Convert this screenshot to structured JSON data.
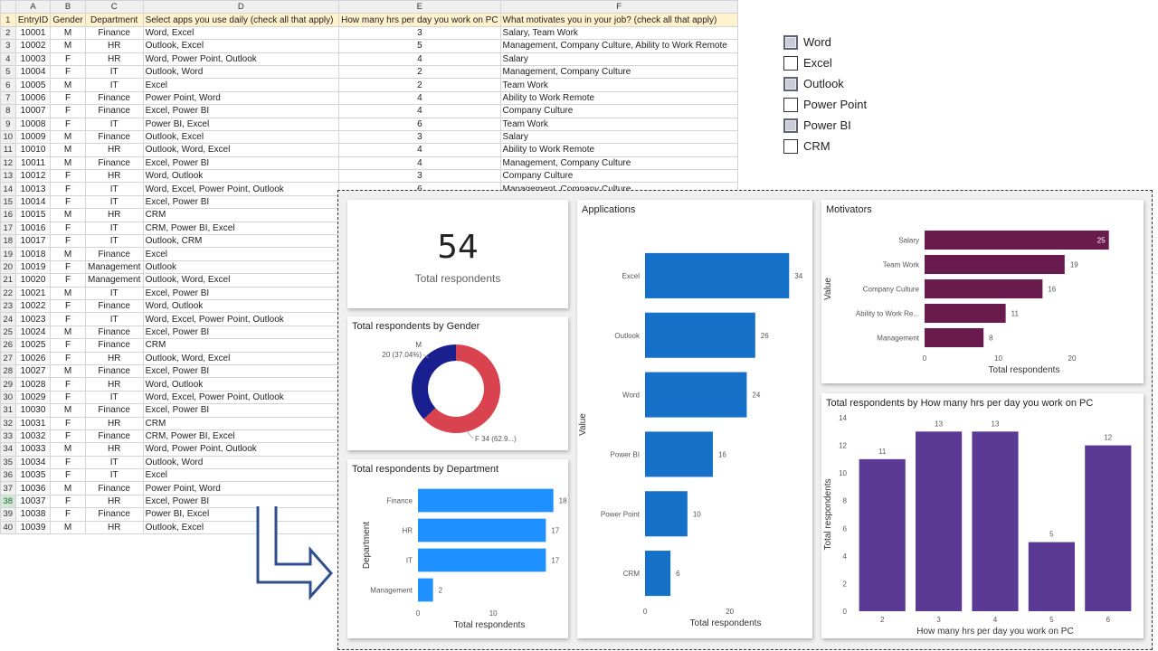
{
  "sheet": {
    "col_letters": [
      "A",
      "B",
      "C",
      "D",
      "E",
      "F"
    ],
    "headers": [
      "EntryID",
      "Gender",
      "Department",
      "Select apps you use daily (check all that apply)",
      "How many hrs per day you work on PC",
      "What motivates you in your job? (check all that apply)"
    ],
    "rows": [
      [
        "10001",
        "M",
        "Finance",
        "Word, Excel",
        "3",
        "Salary, Team Work"
      ],
      [
        "10002",
        "M",
        "HR",
        "Outlook, Excel",
        "5",
        "Management, Company Culture, Ability to Work Remote"
      ],
      [
        "10003",
        "F",
        "HR",
        "Word, Power Point, Outlook",
        "4",
        "Salary"
      ],
      [
        "10004",
        "F",
        "IT",
        "Outlook, Word",
        "2",
        "Management, Company Culture"
      ],
      [
        "10005",
        "M",
        "IT",
        "Excel",
        "2",
        "Team Work"
      ],
      [
        "10006",
        "F",
        "Finance",
        "Power Point, Word",
        "4",
        "Ability to Work Remote"
      ],
      [
        "10007",
        "F",
        "Finance",
        "Excel, Power BI",
        "4",
        "Company Culture"
      ],
      [
        "10008",
        "F",
        "IT",
        "Power BI, Excel",
        "6",
        "Team Work"
      ],
      [
        "10009",
        "M",
        "Finance",
        "Outlook, Excel",
        "3",
        "Salary"
      ],
      [
        "10010",
        "M",
        "HR",
        "Outlook, Word, Excel",
        "4",
        "Ability to Work Remote"
      ],
      [
        "10011",
        "M",
        "Finance",
        "Excel, Power BI",
        "4",
        "Management, Company Culture"
      ],
      [
        "10012",
        "F",
        "HR",
        "Word, Outlook",
        "3",
        "Company Culture"
      ],
      [
        "10013",
        "F",
        "IT",
        "Word, Excel, Power Point, Outlook",
        "6",
        "Management, Company Culture"
      ],
      [
        "10014",
        "F",
        "IT",
        "Excel, Power BI",
        "",
        ""
      ],
      [
        "10015",
        "M",
        "HR",
        "CRM",
        "",
        ""
      ],
      [
        "10016",
        "F",
        "IT",
        "CRM, Power BI, Excel",
        "",
        ""
      ],
      [
        "10017",
        "F",
        "IT",
        "Outlook, CRM",
        "",
        ""
      ],
      [
        "10018",
        "M",
        "Finance",
        "Excel",
        "",
        ""
      ],
      [
        "10019",
        "F",
        "Management",
        "Outlook",
        "",
        ""
      ],
      [
        "10020",
        "F",
        "Management",
        "Outlook, Word, Excel",
        "",
        ""
      ],
      [
        "10021",
        "M",
        "IT",
        "Excel, Power BI",
        "",
        ""
      ],
      [
        "10022",
        "F",
        "Finance",
        "Word, Outlook",
        "",
        ""
      ],
      [
        "10023",
        "F",
        "IT",
        "Word, Excel, Power Point, Outlook",
        "",
        ""
      ],
      [
        "10024",
        "M",
        "Finance",
        "Excel, Power BI",
        "",
        ""
      ],
      [
        "10025",
        "F",
        "Finance",
        "CRM",
        "",
        ""
      ],
      [
        "10026",
        "F",
        "HR",
        "Outlook, Word, Excel",
        "",
        ""
      ],
      [
        "10027",
        "M",
        "Finance",
        "Excel, Power BI",
        "",
        ""
      ],
      [
        "10028",
        "F",
        "HR",
        "Word, Outlook",
        "",
        ""
      ],
      [
        "10029",
        "F",
        "IT",
        "Word, Excel, Power Point, Outlook",
        "",
        ""
      ],
      [
        "10030",
        "M",
        "Finance",
        "Excel, Power BI",
        "",
        ""
      ],
      [
        "10031",
        "F",
        "HR",
        "CRM",
        "",
        ""
      ],
      [
        "10032",
        "F",
        "Finance",
        "CRM, Power BI, Excel",
        "",
        ""
      ],
      [
        "10033",
        "M",
        "HR",
        "Word, Power Point, Outlook",
        "",
        ""
      ],
      [
        "10034",
        "F",
        "IT",
        "Outlook, Word",
        "",
        ""
      ],
      [
        "10035",
        "F",
        "IT",
        "Excel",
        "",
        ""
      ],
      [
        "10036",
        "M",
        "Finance",
        "Power Point, Word",
        "",
        ""
      ],
      [
        "10037",
        "F",
        "HR",
        "Excel, Power BI",
        "",
        ""
      ],
      [
        "10038",
        "F",
        "Finance",
        "Power BI, Excel",
        "",
        ""
      ],
      [
        "10039",
        "M",
        "HR",
        "Outlook, Excel",
        "",
        ""
      ]
    ]
  },
  "checklist": [
    {
      "label": "Word",
      "checked": true
    },
    {
      "label": "Excel",
      "checked": false
    },
    {
      "label": "Outlook",
      "checked": true
    },
    {
      "label": "Power Point",
      "checked": false
    },
    {
      "label": "Power BI",
      "checked": true
    },
    {
      "label": "CRM",
      "checked": false
    }
  ],
  "kpi": {
    "value": "54",
    "label": "Total respondents"
  },
  "colors": {
    "blue": "#1570c8",
    "dept": "#1e90ff",
    "purple": "#6a1b4d",
    "violet": "#5b3a96",
    "donut_m": "#1a1f8f",
    "donut_f": "#d9434f"
  },
  "chart_data": [
    {
      "type": "pie",
      "title": "Total respondents by Gender",
      "categories": [
        "M",
        "F"
      ],
      "values": [
        20,
        34
      ],
      "labels": [
        "20 (37.04%)",
        "34 (62.9...)"
      ]
    },
    {
      "type": "bar",
      "orientation": "horizontal",
      "title": "Total respondents by Department",
      "categories": [
        "Finance",
        "HR",
        "IT",
        "Management"
      ],
      "values": [
        18,
        17,
        17,
        2
      ],
      "xlabel": "Total respondents",
      "ylabel": "Department",
      "xticks": [
        0,
        10
      ]
    },
    {
      "type": "bar",
      "orientation": "horizontal",
      "title": "Applications",
      "categories": [
        "Excel",
        "Outlook",
        "Word",
        "Power BI",
        "Power Point",
        "CRM"
      ],
      "values": [
        34,
        26,
        24,
        16,
        10,
        6
      ],
      "xlabel": "Total respondents",
      "ylabel": "Value",
      "xticks": [
        0,
        20
      ]
    },
    {
      "type": "bar",
      "orientation": "horizontal",
      "title": "Motivators",
      "categories": [
        "Salary",
        "Team Work",
        "Company Culture",
        "Ability to Work Re...",
        "Management"
      ],
      "values": [
        25,
        19,
        16,
        11,
        8
      ],
      "xlabel": "Total respondents",
      "ylabel": "Value",
      "xticks": [
        0,
        10,
        20
      ]
    },
    {
      "type": "bar",
      "orientation": "vertical",
      "title": "Total respondents by How many hrs per day you work on PC",
      "categories": [
        "2",
        "3",
        "4",
        "5",
        "6"
      ],
      "values": [
        11,
        13,
        13,
        5,
        12
      ],
      "xlabel": "How many hrs per day you work on PC",
      "ylabel": "Total respondents",
      "ylim": [
        0,
        14
      ],
      "yticks": [
        0,
        2,
        4,
        6,
        8,
        10,
        12,
        14
      ]
    }
  ]
}
